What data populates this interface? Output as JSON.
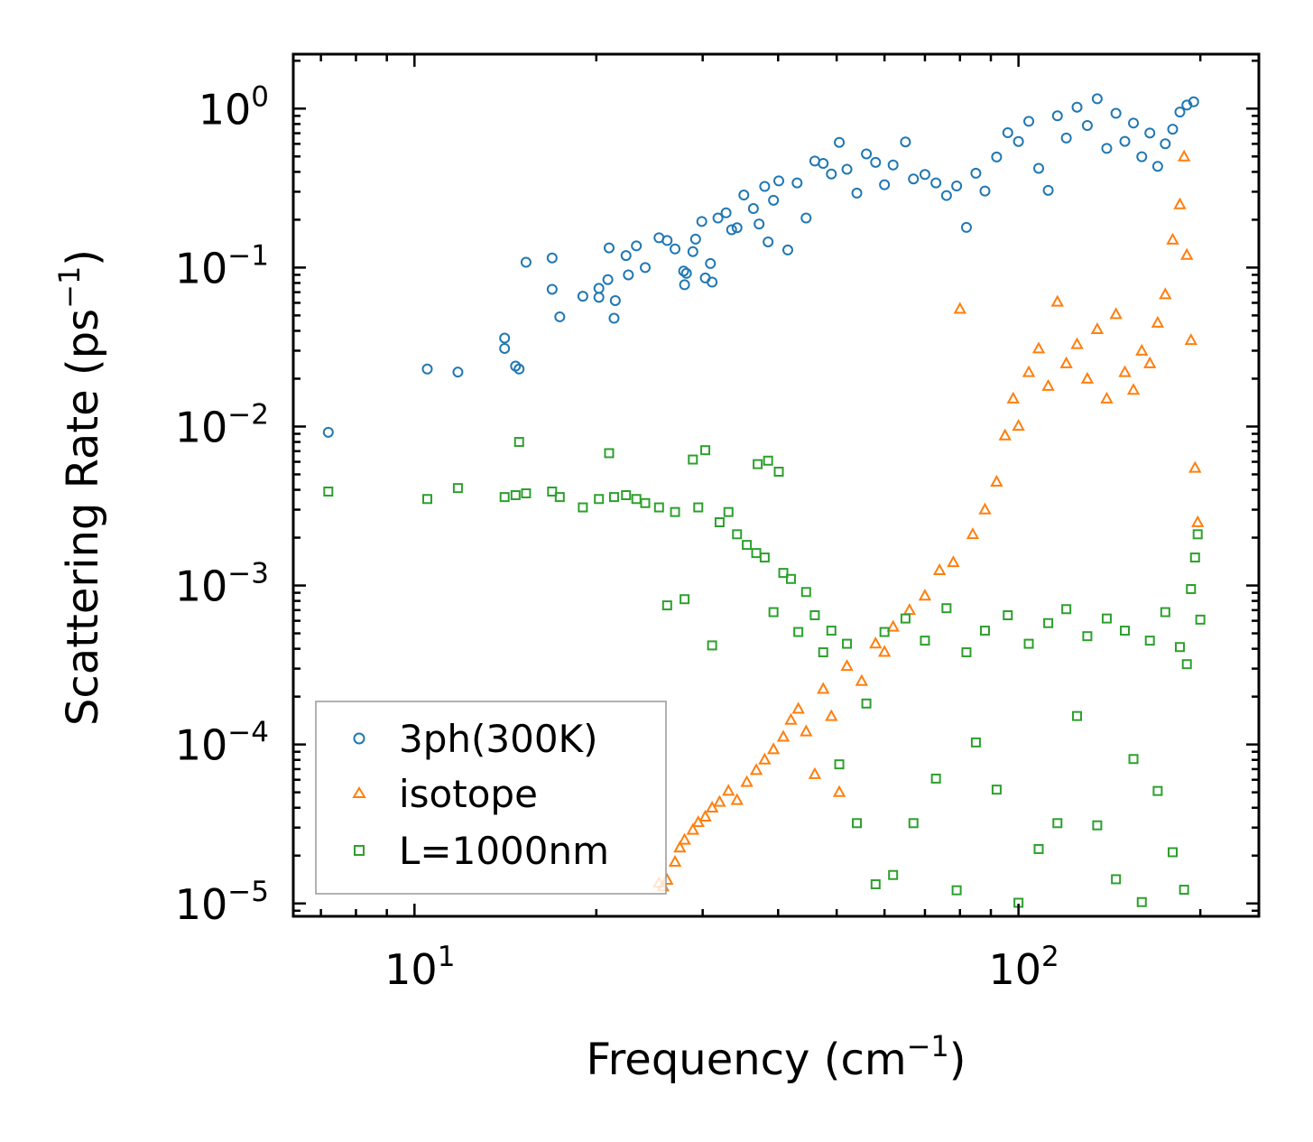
{
  "chart_data": {
    "type": "scatter",
    "title": "",
    "xlabel": {
      "base": "Frequency (cm",
      "sup": "−1",
      "end": ")"
    },
    "ylabel": {
      "base": "Scattering Rate (ps",
      "sup": "−1",
      "end": ")"
    },
    "xscale": "log",
    "yscale": "log",
    "xlim": [
      6.3,
      250
    ],
    "ylim": [
      8.3e-06,
      2.2
    ],
    "x_major_ticks": [
      {
        "value": 10,
        "base": "10",
        "exp": "1"
      },
      {
        "value": 100,
        "base": "10",
        "exp": "2"
      }
    ],
    "y_major_ticks": [
      {
        "value": 1,
        "base": "10",
        "exp": "0"
      },
      {
        "value": 0.1,
        "base": "10",
        "exp": "−1"
      },
      {
        "value": 0.01,
        "base": "10",
        "exp": "−2"
      },
      {
        "value": 0.001,
        "base": "10",
        "exp": "−3"
      },
      {
        "value": 0.0001,
        "base": "10",
        "exp": "−4"
      },
      {
        "value": 1e-05,
        "base": "10",
        "exp": "−5"
      }
    ],
    "legend_position": "lower-left",
    "series": [
      {
        "name": "3ph(300K)",
        "color": "#1f77b4",
        "marker": "circle",
        "points": [
          [
            7.2,
            0.0092
          ],
          [
            10.5,
            0.023
          ],
          [
            11.8,
            0.022
          ],
          [
            14.1,
            0.036
          ],
          [
            14.1,
            0.031
          ],
          [
            14.7,
            0.024
          ],
          [
            14.9,
            0.023
          ],
          [
            15.3,
            0.108
          ],
          [
            16.9,
            0.115
          ],
          [
            16.9,
            0.073
          ],
          [
            17.4,
            0.049
          ],
          [
            19.0,
            0.066
          ],
          [
            20.2,
            0.065
          ],
          [
            20.2,
            0.074
          ],
          [
            20.9,
            0.084
          ],
          [
            21.0,
            0.133
          ],
          [
            21.4,
            0.048
          ],
          [
            21.5,
            0.062
          ],
          [
            22.4,
            0.119
          ],
          [
            22.6,
            0.09
          ],
          [
            23.3,
            0.137
          ],
          [
            24.1,
            0.1
          ],
          [
            25.4,
            0.154
          ],
          [
            26.2,
            0.148
          ],
          [
            27.0,
            0.131
          ],
          [
            27.9,
            0.095
          ],
          [
            28.0,
            0.078
          ],
          [
            28.2,
            0.092
          ],
          [
            28.9,
            0.126
          ],
          [
            29.2,
            0.151
          ],
          [
            29.9,
            0.195
          ],
          [
            30.3,
            0.086
          ],
          [
            30.9,
            0.106
          ],
          [
            31.1,
            0.081
          ],
          [
            31.8,
            0.205
          ],
          [
            32.8,
            0.221
          ],
          [
            33.5,
            0.173
          ],
          [
            34.2,
            0.178
          ],
          [
            35.1,
            0.286
          ],
          [
            36.4,
            0.235
          ],
          [
            37.2,
            0.188
          ],
          [
            38.0,
            0.324
          ],
          [
            38.5,
            0.145
          ],
          [
            39.3,
            0.265
          ],
          [
            40.1,
            0.351
          ],
          [
            41.5,
            0.129
          ],
          [
            43.0,
            0.341
          ],
          [
            44.5,
            0.205
          ],
          [
            46.0,
            0.468
          ],
          [
            47.5,
            0.452
          ],
          [
            49.0,
            0.388
          ],
          [
            50.5,
            0.613
          ],
          [
            52.0,
            0.415
          ],
          [
            54.0,
            0.294
          ],
          [
            56.0,
            0.519
          ],
          [
            58.0,
            0.459
          ],
          [
            60.0,
            0.332
          ],
          [
            62.0,
            0.442
          ],
          [
            65.0,
            0.617
          ],
          [
            67.0,
            0.361
          ],
          [
            70.0,
            0.385
          ],
          [
            73.0,
            0.341
          ],
          [
            76.0,
            0.284
          ],
          [
            79.0,
            0.326
          ],
          [
            82.0,
            0.179
          ],
          [
            85.0,
            0.392
          ],
          [
            88.0,
            0.303
          ],
          [
            92.0,
            0.496
          ],
          [
            96.0,
            0.705
          ],
          [
            100.0,
            0.621
          ],
          [
            104.0,
            0.832
          ],
          [
            108.0,
            0.421
          ],
          [
            112.0,
            0.306
          ],
          [
            116.0,
            0.901
          ],
          [
            120.0,
            0.653
          ],
          [
            125.0,
            1.021
          ],
          [
            130.0,
            0.783
          ],
          [
            135.0,
            1.153
          ],
          [
            140.0,
            0.562
          ],
          [
            145.0,
            0.934
          ],
          [
            150.0,
            0.622
          ],
          [
            155.0,
            0.811
          ],
          [
            160.0,
            0.498
          ],
          [
            165.0,
            0.702
          ],
          [
            170.0,
            0.433
          ],
          [
            175.0,
            0.601
          ],
          [
            180.0,
            0.742
          ],
          [
            185.0,
            0.951
          ],
          [
            190.0,
            1.052
          ],
          [
            195.0,
            1.103
          ]
        ]
      },
      {
        "name": "isotope",
        "color": "#ff7f0e",
        "marker": "triangle",
        "points": [
          [
            25.4,
            1.35e-05
          ],
          [
            25.8,
            1.28e-05
          ],
          [
            26.2,
            1.41e-05
          ],
          [
            27.0,
            1.83e-05
          ],
          [
            27.5,
            2.25e-05
          ],
          [
            28.0,
            2.52e-05
          ],
          [
            28.9,
            2.91e-05
          ],
          [
            29.5,
            3.25e-05
          ],
          [
            30.3,
            3.52e-05
          ],
          [
            31.1,
            4.01e-05
          ],
          [
            32.0,
            4.36e-05
          ],
          [
            33.1,
            5.12e-05
          ],
          [
            34.2,
            4.48e-05
          ],
          [
            35.5,
            5.81e-05
          ],
          [
            36.8,
            6.92e-05
          ],
          [
            38.0,
            8.05e-05
          ],
          [
            39.3,
            9.34e-05
          ],
          [
            40.8,
            0.000112
          ],
          [
            42.0,
            0.000143
          ],
          [
            43.2,
            0.000168
          ],
          [
            44.5,
            0.000121
          ],
          [
            46.0,
            6.52e-05
          ],
          [
            47.5,
            0.000224
          ],
          [
            49.0,
            0.000151
          ],
          [
            50.5,
            5.03e-05
          ],
          [
            52.0,
            0.000312
          ],
          [
            55.0,
            0.000251
          ],
          [
            58.0,
            0.000432
          ],
          [
            60.0,
            0.000383
          ],
          [
            62.0,
            0.000551
          ],
          [
            66.0,
            0.000702
          ],
          [
            70.0,
            0.000864
          ],
          [
            74.0,
            0.001251
          ],
          [
            78.0,
            0.001403
          ],
          [
            80.0,
            0.0551
          ],
          [
            84.0,
            0.002104
          ],
          [
            88.0,
            0.003012
          ],
          [
            92.0,
            0.004503
          ],
          [
            95.0,
            0.008802
          ],
          [
            98.0,
            0.01502
          ],
          [
            100.0,
            0.01012
          ],
          [
            104.0,
            0.02201
          ],
          [
            108.0,
            0.03101
          ],
          [
            112.0,
            0.01803
          ],
          [
            116.0,
            0.06102
          ],
          [
            120.0,
            0.02502
          ],
          [
            125.0,
            0.03302
          ],
          [
            130.0,
            0.02001
          ],
          [
            135.0,
            0.04102
          ],
          [
            140.0,
            0.01501
          ],
          [
            145.0,
            0.05101
          ],
          [
            150.0,
            0.02203
          ],
          [
            155.0,
            0.01702
          ],
          [
            160.0,
            0.03001
          ],
          [
            165.0,
            0.02502
          ],
          [
            170.0,
            0.04502
          ],
          [
            175.0,
            0.06802
          ],
          [
            180.0,
            0.1501
          ],
          [
            185.0,
            0.2502
          ],
          [
            188.0,
            0.5002
          ],
          [
            190.0,
            0.1203
          ],
          [
            193.0,
            0.03501
          ],
          [
            196.0,
            0.005503
          ],
          [
            198.0,
            0.002503
          ]
        ]
      },
      {
        "name": "L=1000nm",
        "color": "#2ca02c",
        "marker": "square",
        "points": [
          [
            7.2,
            0.0039
          ],
          [
            10.5,
            0.0035
          ],
          [
            11.8,
            0.0041
          ],
          [
            14.1,
            0.0036
          ],
          [
            14.7,
            0.0037
          ],
          [
            15.3,
            0.0038
          ],
          [
            14.9,
            0.008
          ],
          [
            16.9,
            0.0039
          ],
          [
            17.4,
            0.0036
          ],
          [
            19.0,
            0.0031
          ],
          [
            20.2,
            0.0035
          ],
          [
            21.0,
            0.0068
          ],
          [
            21.4,
            0.0036
          ],
          [
            22.4,
            0.0037
          ],
          [
            23.3,
            0.0035
          ],
          [
            24.1,
            0.0033
          ],
          [
            25.4,
            0.0031
          ],
          [
            26.2,
            0.00075
          ],
          [
            27.0,
            0.0029
          ],
          [
            28.0,
            0.00082
          ],
          [
            28.9,
            0.0062
          ],
          [
            29.5,
            0.0031
          ],
          [
            30.3,
            0.0071
          ],
          [
            31.1,
            0.00042
          ],
          [
            32.0,
            0.0025
          ],
          [
            33.1,
            0.0029
          ],
          [
            34.2,
            0.0021
          ],
          [
            35.5,
            0.0018
          ],
          [
            36.8,
            0.0016
          ],
          [
            37.0,
            0.0058
          ],
          [
            38.0,
            0.0015
          ],
          [
            38.5,
            0.0061
          ],
          [
            39.3,
            0.00068
          ],
          [
            40.1,
            0.0052
          ],
          [
            40.8,
            0.0012
          ],
          [
            42.0,
            0.0011
          ],
          [
            43.2,
            0.00051
          ],
          [
            44.5,
            0.00091
          ],
          [
            46.0,
            0.00065
          ],
          [
            47.5,
            0.00038
          ],
          [
            49.0,
            0.00052
          ],
          [
            50.5,
            7.5e-05
          ],
          [
            52.0,
            0.00043
          ],
          [
            54.0,
            3.2e-05
          ],
          [
            56.0,
            0.000181
          ],
          [
            58.0,
            1.32e-05
          ],
          [
            60.0,
            0.00051
          ],
          [
            62.0,
            1.51e-05
          ],
          [
            65.0,
            0.00062
          ],
          [
            67.0,
            3.2e-05
          ],
          [
            70.0,
            0.00045
          ],
          [
            73.0,
            6.1e-05
          ],
          [
            76.0,
            0.00072
          ],
          [
            79.0,
            1.21e-05
          ],
          [
            82.0,
            0.00038
          ],
          [
            85.0,
            0.000103
          ],
          [
            88.0,
            0.00052
          ],
          [
            92.0,
            5.2e-05
          ],
          [
            96.0,
            0.00065
          ],
          [
            100.0,
            1.01e-05
          ],
          [
            104.0,
            0.00043
          ],
          [
            108.0,
            2.2e-05
          ],
          [
            112.0,
            0.00058
          ],
          [
            116.0,
            3.2e-05
          ],
          [
            120.0,
            0.00071
          ],
          [
            125.0,
            0.000151
          ],
          [
            130.0,
            0.00048
          ],
          [
            135.0,
            3.1e-05
          ],
          [
            140.0,
            0.00062
          ],
          [
            145.0,
            1.42e-05
          ],
          [
            150.0,
            0.00052
          ],
          [
            155.0,
            8.1e-05
          ],
          [
            160.0,
            1.02e-05
          ],
          [
            165.0,
            0.00045
          ],
          [
            170.0,
            5.1e-05
          ],
          [
            175.0,
            0.00068
          ],
          [
            180.0,
            2.1e-05
          ],
          [
            185.0,
            0.00041
          ],
          [
            188.0,
            1.22e-05
          ],
          [
            190.0,
            0.00032
          ],
          [
            193.0,
            0.00095
          ],
          [
            196.0,
            0.0015
          ],
          [
            198.0,
            0.0021
          ],
          [
            200.0,
            0.00061
          ]
        ]
      }
    ]
  }
}
